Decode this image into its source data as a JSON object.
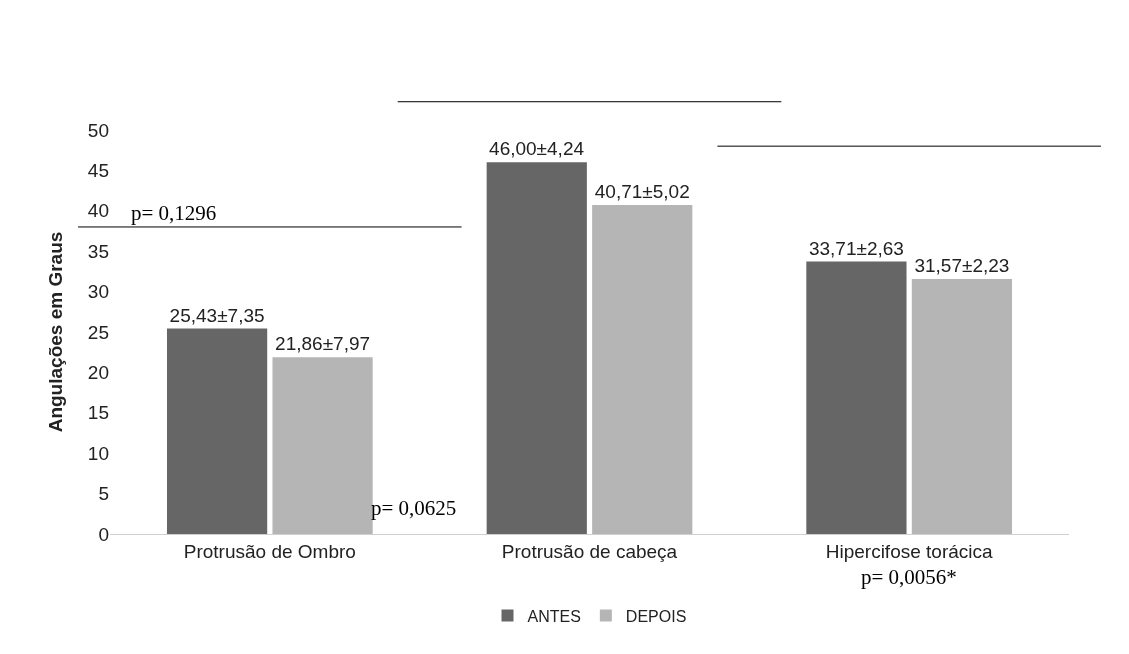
{
  "chart_data": {
    "type": "bar",
    "ylabel": "Angulações em Graus",
    "categories": [
      "Protrusão de Ombro",
      "Protrusão de cabeça",
      "Hipercifose torácica"
    ],
    "series": [
      {
        "name": "ANTES",
        "color": "#666666",
        "values": [
          25.43,
          46.0,
          33.71
        ],
        "value_labels": [
          "25,43±7,35",
          "46,00±4,24",
          "33,71±2,63"
        ]
      },
      {
        "name": "DEPOIS",
        "color": "#b5b5b5",
        "values": [
          21.86,
          40.71,
          31.57
        ],
        "value_labels": [
          "21,86±7,97",
          "40,71±5,02",
          "31,57±2,23"
        ]
      }
    ],
    "annotations": [
      "p= 0,1296",
      "p= 0,0625",
      "p= 0,0056*"
    ],
    "ylim": [
      0,
      50
    ],
    "yticks": [
      0,
      5,
      10,
      15,
      20,
      25,
      30,
      35,
      40,
      45,
      50
    ],
    "grid": false,
    "legend": "bottom"
  }
}
